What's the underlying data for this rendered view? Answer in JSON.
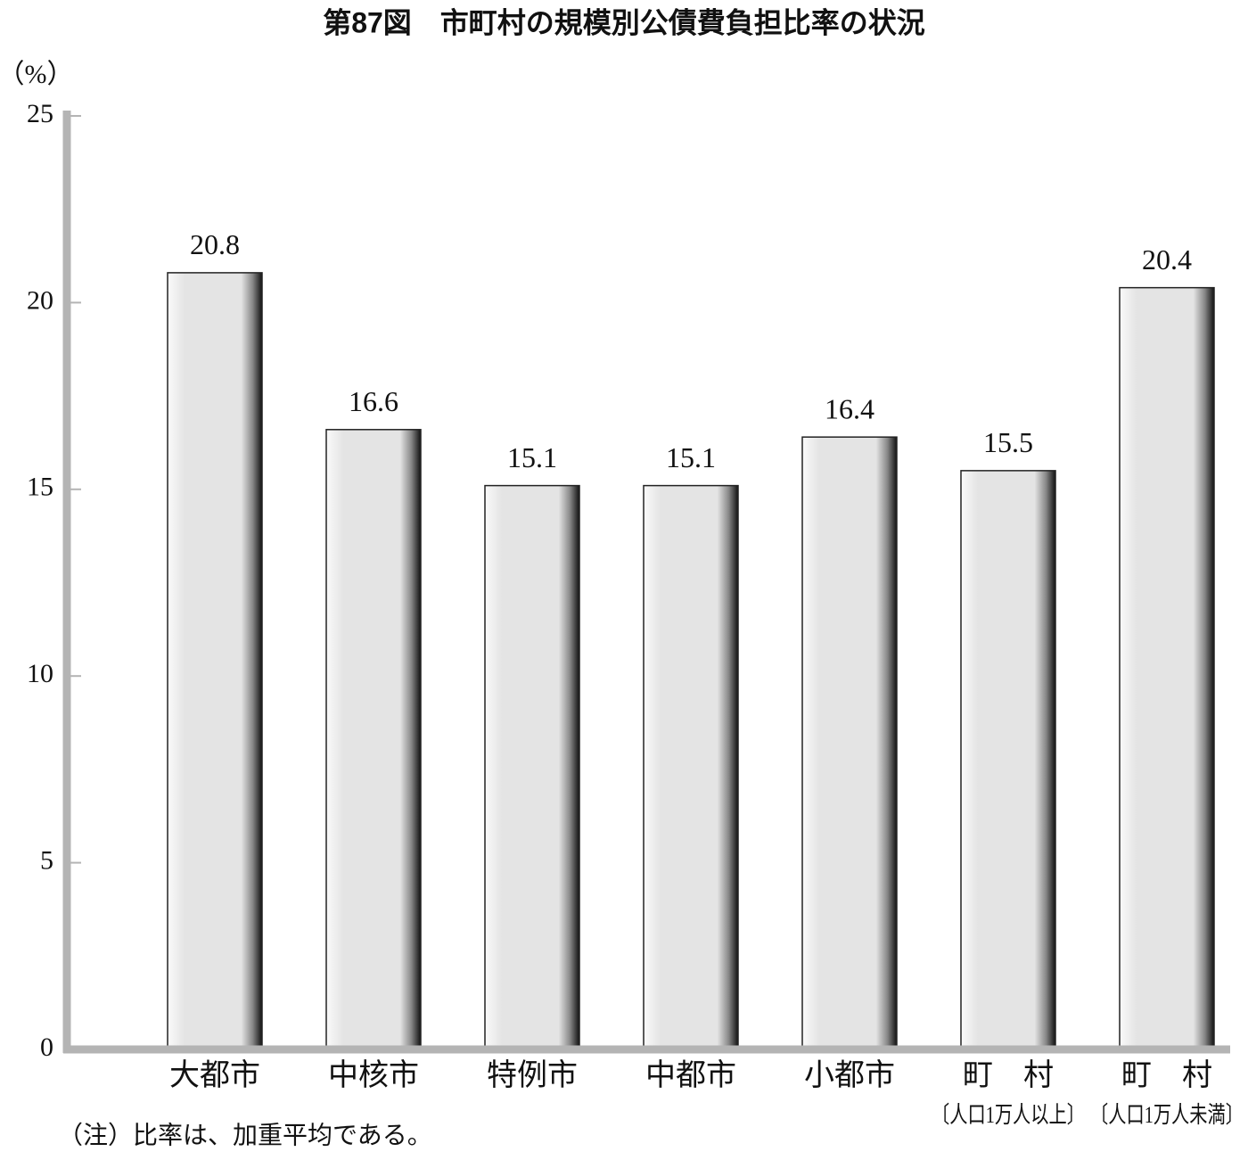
{
  "chart_data": {
    "type": "bar",
    "title": "第87図　市町村の規模別公債費負担比率の状況",
    "y_label": "（%）",
    "categories": [
      "大都市",
      "中核市",
      "特例市",
      "中都市",
      "小都市",
      "町　村",
      "町　村"
    ],
    "category_sublabels": [
      null,
      null,
      null,
      null,
      null,
      "〔人口1万人以上〕",
      "〔人口1万人未満〕"
    ],
    "values": [
      20.8,
      16.6,
      15.1,
      15.1,
      16.4,
      15.5,
      20.4
    ],
    "color": "#e4e4e4",
    "ylim": [
      0,
      25
    ],
    "yticks": [
      0,
      5,
      10,
      15,
      20,
      25
    ],
    "note": "（注）比率は、加重平均である。"
  }
}
